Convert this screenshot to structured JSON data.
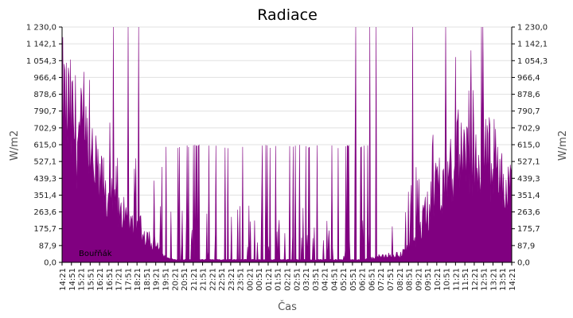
{
  "chart_data": {
    "type": "area",
    "title": "Radiace",
    "xlabel": "Čas",
    "ylabel": "W/m2",
    "ylabel_right": "W/m2",
    "ylim": [
      0,
      1230
    ],
    "yticks": [
      "0,0",
      "87,9",
      "175,7",
      "263,6",
      "351,4",
      "439,3",
      "527,1",
      "615,0",
      "702,9",
      "790,7",
      "878,6",
      "966,4",
      "1 054,3",
      "1 142,1",
      "1 230,0"
    ],
    "grid": true,
    "legend_position": "bottom-left",
    "colors": {
      "series": "#800080",
      "grid": "#e0e0e0",
      "axis": "#000000"
    },
    "x_ticks": [
      "14:21",
      "14:51",
      "15:21",
      "15:51",
      "16:21",
      "16:51",
      "17:21",
      "17:51",
      "18:21",
      "18:51",
      "19:21",
      "19:51",
      "20:21",
      "20:51",
      "21:21",
      "21:51",
      "22:21",
      "22:51",
      "23:21",
      "23:51",
      "00:21",
      "00:51",
      "01:21",
      "01:51",
      "02:21",
      "02:51",
      "03:21",
      "03:51",
      "04:21",
      "04:51",
      "05:21",
      "05:51",
      "06:21",
      "06:51",
      "07:21",
      "07:51",
      "08:21",
      "08:51",
      "09:21",
      "09:51",
      "10:21",
      "10:51",
      "11:21",
      "11:51",
      "12:21",
      "12:51",
      "13:21",
      "13:51",
      "14:21"
    ],
    "series": [
      {
        "name": "Bouřňák",
        "color": "#800080",
        "envelope": [
          {
            "t": "14:21",
            "base": 820,
            "amp": 0.5
          },
          {
            "t": "15:21",
            "base": 650,
            "amp": 0.5
          },
          {
            "t": "16:21",
            "base": 420,
            "amp": 0.5
          },
          {
            "t": "17:21",
            "base": 250,
            "amp": 0.5
          },
          {
            "t": "18:21",
            "base": 190,
            "amp": 0.5
          },
          {
            "t": "19:21",
            "base": 90,
            "amp": 0.5
          },
          {
            "t": "19:51",
            "base": 25,
            "amp": 0.5
          },
          {
            "t": "20:21",
            "base": 12,
            "amp": 0.5
          },
          {
            "t": "06:21",
            "base": 12,
            "amp": 0.5
          },
          {
            "t": "07:21",
            "base": 30,
            "amp": 0.5
          },
          {
            "t": "08:21",
            "base": 40,
            "amp": 0.5
          },
          {
            "t": "08:51",
            "base": 70,
            "amp": 0.5
          },
          {
            "t": "09:21",
            "base": 140,
            "amp": 0.5
          },
          {
            "t": "09:51",
            "base": 270,
            "amp": 0.5
          },
          {
            "t": "10:21",
            "base": 420,
            "amp": 0.5
          },
          {
            "t": "11:21",
            "base": 520,
            "amp": 0.5
          },
          {
            "t": "12:21",
            "base": 560,
            "amp": 0.5
          },
          {
            "t": "13:21",
            "base": 540,
            "amp": 0.5
          },
          {
            "t": "14:21",
            "base": 380,
            "amp": 0.5
          }
        ],
        "night_spike_value": 615,
        "peak_value": 1230
      }
    ]
  }
}
